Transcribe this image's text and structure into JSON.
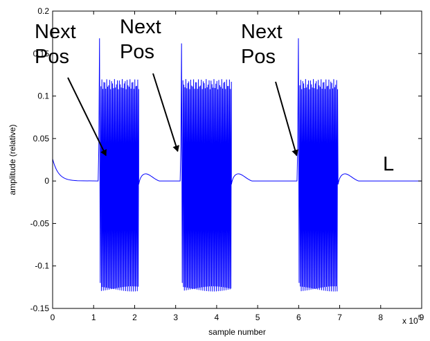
{
  "chart_data": {
    "type": "line",
    "xlabel": "sample number",
    "ylabel": "amplitude (relative)",
    "xlim": [
      0,
      900000
    ],
    "ylim": [
      -0.15,
      0.2
    ],
    "x_exponent_label": "x 10",
    "x_exponent_power": "5",
    "x_ticks": [
      0,
      1,
      2,
      3,
      4,
      5,
      6,
      7,
      8,
      9
    ],
    "x_tick_labels": [
      "0",
      "1",
      "2",
      "3",
      "4",
      "5",
      "6",
      "7",
      "8",
      "9"
    ],
    "y_ticks": [
      -0.15,
      -0.1,
      -0.05,
      0,
      0.05,
      0.1,
      0.15,
      0.2
    ],
    "y_tick_labels": [
      "-0.15",
      "-0.1",
      "-0.05",
      "0",
      "0.05",
      "0.1",
      "0.15",
      "0.2"
    ],
    "grid": false,
    "line_color": "#0000ff",
    "series": [
      {
        "bursts": [
          {
            "x_start": 111000,
            "x_end": 210000,
            "spike_max": 0.168,
            "upper_envelope": 0.12,
            "lower_envelope": -0.13,
            "tail_peak": 0.011
          },
          {
            "x_start": 311000,
            "x_end": 436000,
            "spike_max": 0.162,
            "upper_envelope": 0.12,
            "lower_envelope": -0.13,
            "tail_peak": 0.011
          },
          {
            "x_start": 596000,
            "x_end": 696000,
            "spike_max": 0.168,
            "upper_envelope": 0.12,
            "lower_envelope": -0.13,
            "tail_peak": 0.011
          }
        ],
        "initial_value": 0.026,
        "baseline": 0
      }
    ],
    "annotations": [
      {
        "lines": [
          "Next",
          "Pos"
        ],
        "arrow_to": [
          130000,
          0.03
        ]
      },
      {
        "lines": [
          "Next",
          "Pos"
        ],
        "arrow_to": [
          305000,
          0.035
        ]
      },
      {
        "lines": [
          "Next",
          "Pos"
        ],
        "arrow_to": [
          595000,
          0.03
        ]
      },
      {
        "lines": [
          "L"
        ]
      }
    ]
  }
}
